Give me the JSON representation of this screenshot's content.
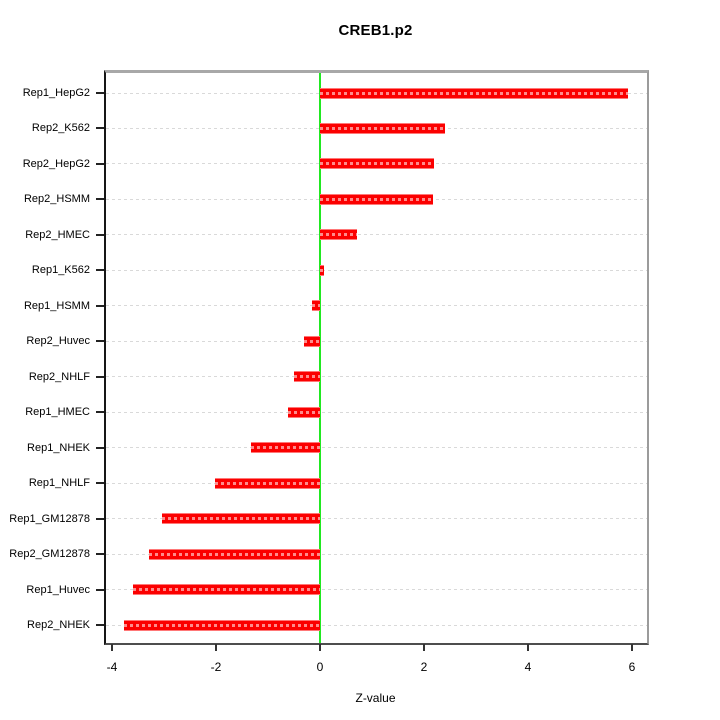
{
  "title": "CREB1.p2",
  "chart_data": {
    "type": "bar",
    "orientation": "horizontal",
    "title": "CREB1.p2",
    "xlabel": "Z-value",
    "ylabel": "",
    "categories": [
      "Rep1_HepG2",
      "Rep2_K562",
      "Rep2_HepG2",
      "Rep2_HSMM",
      "Rep2_HMEC",
      "Rep1_K562",
      "Rep1_HSMM",
      "Rep2_Huvec",
      "Rep2_NHLF",
      "Rep1_HMEC",
      "Rep1_NHEK",
      "Rep1_NHLF",
      "Rep1_GM12878",
      "Rep2_GM12878",
      "Rep1_Huvec",
      "Rep2_NHEK"
    ],
    "values": [
      5.92,
      2.4,
      2.2,
      2.17,
      0.71,
      0.08,
      -0.15,
      -0.31,
      -0.5,
      -0.62,
      -1.33,
      -2.02,
      -3.04,
      -3.29,
      -3.6,
      -3.77
    ],
    "xticks": [
      -4,
      -2,
      0,
      2,
      4,
      6
    ],
    "xlim": [
      -4.15,
      6.3
    ],
    "grid": "dotted-horizontal",
    "legend": "none",
    "colors": {
      "bar": "#fb0000",
      "zero_line": "#21e821",
      "gridline": "#d9d9d9",
      "axis_box_top": "#a8a8a8",
      "axis_box_bottom": "#4d4d4d",
      "axis_box_left": "#161616",
      "text": "#000000"
    }
  }
}
